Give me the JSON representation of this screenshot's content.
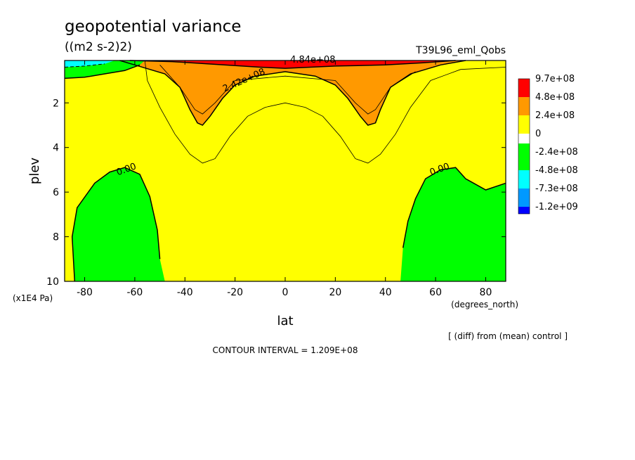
{
  "chart_data": {
    "type": "contour",
    "title": "geopotential variance",
    "units": "((m2 s-2)2)",
    "run_label": "T39L96_eml_Qobs",
    "xlabel": "lat",
    "x_units": "(degrees_north)",
    "ylabel": "plev",
    "y_units": "(x1E4 Pa)",
    "xlim": [
      -88,
      88
    ],
    "ylim": [
      10,
      0.1
    ],
    "x_ticks": [
      -80,
      -60,
      -40,
      -20,
      0,
      20,
      40,
      60,
      80
    ],
    "y_ticks": [
      2,
      4,
      6,
      8,
      10
    ],
    "legend": {
      "position": "right",
      "entries": [
        {
          "label": "9.7e+08",
          "color": "#ff0000"
        },
        {
          "label": "4.8e+08",
          "color": "#ff9900"
        },
        {
          "label": "2.4e+08",
          "color": "#ffff00"
        },
        {
          "label": "0",
          "color": "#00ff00"
        },
        {
          "label": "-2.4e+08",
          "color": "#00ff00"
        },
        {
          "label": "-4.8e+08",
          "color": "#00ffff"
        },
        {
          "label": "-7.3e+08",
          "color": "#0099ff"
        },
        {
          "label": "-1.2e+09",
          "color": "#0000ff"
        }
      ]
    },
    "contour_labels": [
      {
        "text": "4.84e+08",
        "lat": 11,
        "plev": 0.2
      },
      {
        "text": "2.42e+08",
        "lat": -16,
        "plev": 1.1
      },
      {
        "text": "0.00",
        "lat": -63,
        "plev": 5.1
      },
      {
        "text": "0.00",
        "lat": 62,
        "plev": 5.1
      }
    ],
    "contour_interval_text": "CONTOUR INTERVAL = 1.209E+08",
    "note": "[ (diff) from (mean) control ]",
    "regions": {
      "background_color": "#ffff00",
      "orange_color": "#ff9900",
      "red_color": "#ff0000",
      "green_color": "#00ff00",
      "cyan_color": "#00ffff",
      "orange_left": [
        [
          -66,
          0.1
        ],
        [
          -60,
          0.3
        ],
        [
          -48,
          0.7
        ],
        [
          -42,
          1.3
        ],
        [
          -38,
          2.3
        ],
        [
          -35,
          2.9
        ],
        [
          -33,
          3.0
        ],
        [
          -30,
          2.6
        ],
        [
          -25,
          1.8
        ],
        [
          -20,
          1.2
        ],
        [
          -12,
          0.8
        ],
        [
          0,
          0.6
        ],
        [
          12,
          0.8
        ],
        [
          20,
          1.2
        ],
        [
          25,
          1.8
        ],
        [
          30,
          2.6
        ],
        [
          33,
          3.0
        ],
        [
          36,
          2.9
        ],
        [
          38,
          2.3
        ],
        [
          42,
          1.3
        ],
        [
          50,
          0.7
        ],
        [
          62,
          0.3
        ],
        [
          72,
          0.1
        ]
      ],
      "red_top": [
        [
          -62,
          0.1
        ],
        [
          -45,
          0.15
        ],
        [
          -10,
          0.4
        ],
        [
          0,
          0.45
        ],
        [
          20,
          0.35
        ],
        [
          40,
          0.3
        ],
        [
          55,
          0.2
        ],
        [
          68,
          0.1
        ]
      ],
      "green_left_top": [
        [
          -88,
          0.1
        ],
        [
          -88,
          0.9
        ],
        [
          -80,
          0.85
        ],
        [
          -72,
          0.7
        ],
        [
          -64,
          0.55
        ],
        [
          -58,
          0.3
        ],
        [
          -56,
          0.1
        ]
      ],
      "green_left_bottom": [
        [
          -84,
          10
        ],
        [
          -85,
          8
        ],
        [
          -83,
          6.7
        ],
        [
          -76,
          5.6
        ],
        [
          -70,
          5.1
        ],
        [
          -64,
          4.9
        ],
        [
          -58,
          5.2
        ],
        [
          -54,
          6.2
        ],
        [
          -51,
          7.7
        ],
        [
          -50,
          9.0
        ],
        [
          -48,
          10
        ]
      ],
      "green_right_bottom": [
        [
          46,
          10
        ],
        [
          47,
          8.5
        ],
        [
          49,
          7.3
        ],
        [
          52,
          6.3
        ],
        [
          56,
          5.4
        ],
        [
          62,
          5.0
        ],
        [
          68,
          4.9
        ],
        [
          72,
          5.4
        ],
        [
          80,
          5.9
        ],
        [
          88,
          5.6
        ],
        [
          88,
          10
        ]
      ],
      "cyan_left_top": [
        [
          -88,
          0.1
        ],
        [
          -88,
          0.4
        ],
        [
          -80,
          0.35
        ],
        [
          -72,
          0.25
        ],
        [
          -68,
          0.1
        ]
      ],
      "thin_contour_1": [
        [
          -56,
          0.1
        ],
        [
          -55,
          1.0
        ],
        [
          -50,
          2.2
        ],
        [
          -44,
          3.4
        ],
        [
          -38,
          4.3
        ],
        [
          -33,
          4.7
        ],
        [
          -28,
          4.5
        ],
        [
          -22,
          3.5
        ],
        [
          -15,
          2.6
        ],
        [
          -8,
          2.2
        ],
        [
          0,
          2.0
        ],
        [
          8,
          2.2
        ],
        [
          15,
          2.6
        ],
        [
          22,
          3.5
        ],
        [
          28,
          4.5
        ],
        [
          33,
          4.7
        ],
        [
          38,
          4.3
        ],
        [
          44,
          3.4
        ],
        [
          50,
          2.2
        ],
        [
          58,
          1.0
        ],
        [
          70,
          0.5
        ],
        [
          88,
          0.4
        ]
      ],
      "thin_contour_2": [
        [
          -50,
          0.3
        ],
        [
          -42,
          1.3
        ],
        [
          -36,
          2.3
        ],
        [
          -33,
          2.5
        ],
        [
          -28,
          2.0
        ],
        [
          -20,
          1.0
        ],
        [
          0,
          0.8
        ],
        [
          20,
          1.0
        ],
        [
          28,
          2.0
        ],
        [
          33,
          2.5
        ],
        [
          36,
          2.3
        ],
        [
          42,
          1.3
        ],
        [
          52,
          0.6
        ]
      ]
    }
  }
}
